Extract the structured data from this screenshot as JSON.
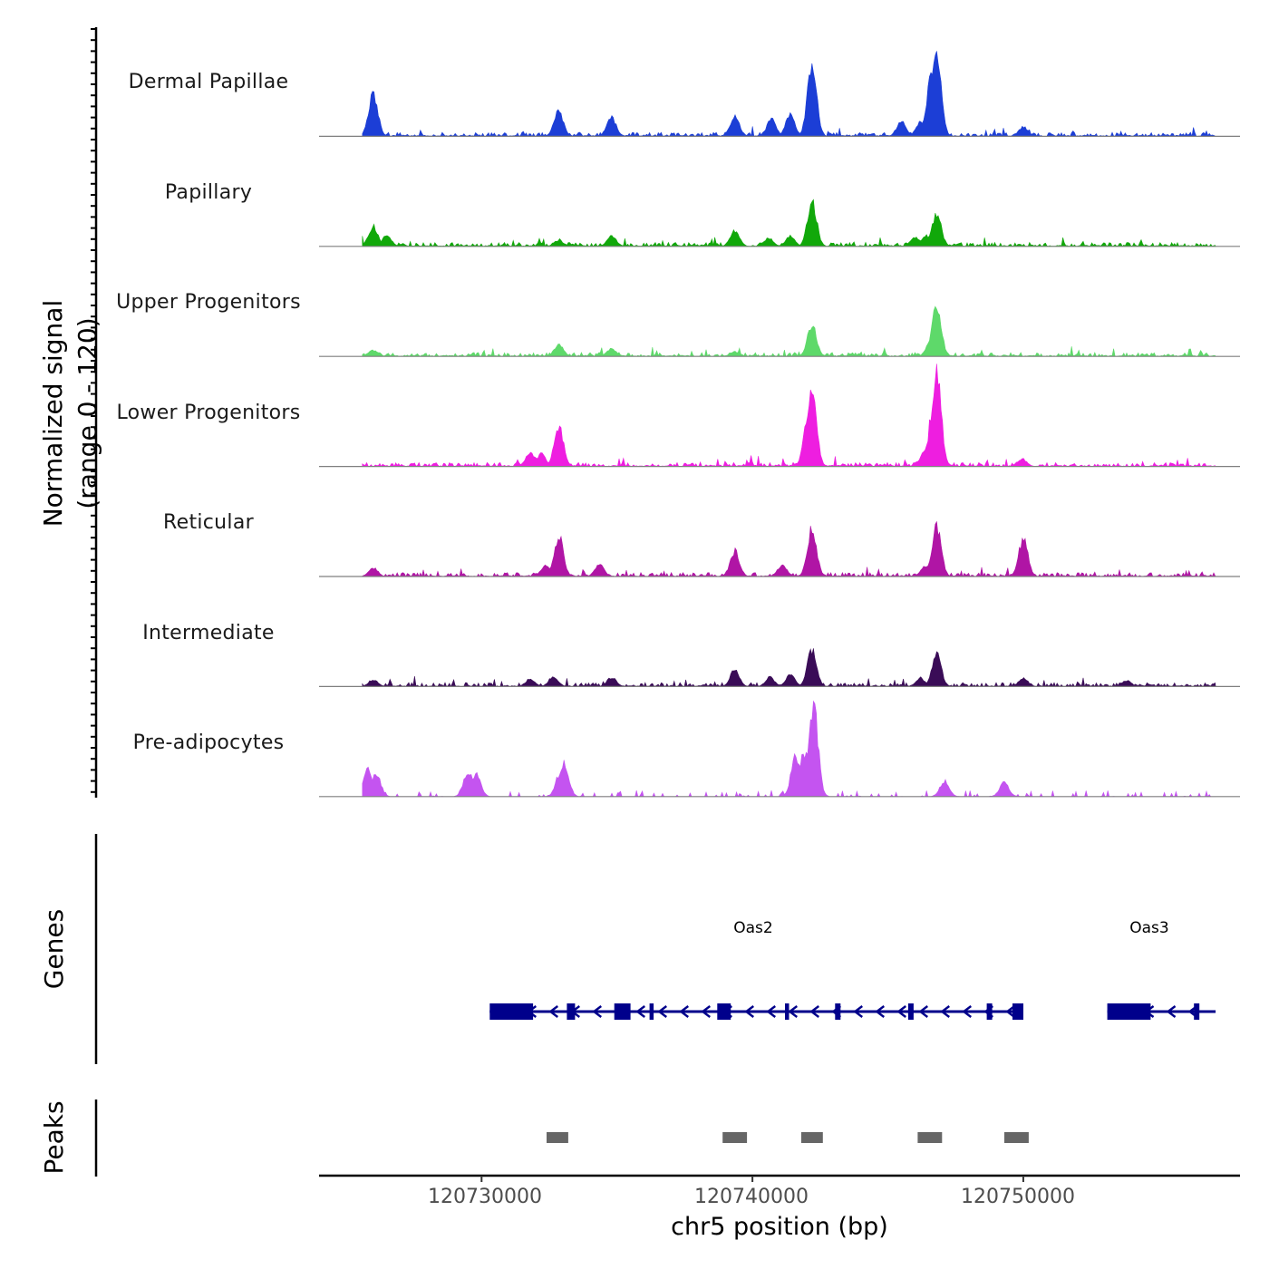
{
  "chart_data": {
    "type": "area",
    "title": "",
    "ylabel_line1": "Normalized signal",
    "ylabel_line2": "(range 0 - 120)",
    "genes_label": "Genes",
    "peaks_label": "Peaks",
    "xlabel": "chr5 position (bp)",
    "xlim": [
      120724000,
      120758000
    ],
    "ylim": [
      0,
      120
    ],
    "x_ticks": [
      {
        "value": 120730000,
        "label": "120730000"
      },
      {
        "value": 120740000,
        "label": "120740000"
      },
      {
        "value": 120750000,
        "label": "120750000"
      }
    ],
    "data_x_start": 120725600,
    "data_x_end": 120757100,
    "peak_positions": [
      120726000,
      120732850,
      120739350,
      120742200,
      120746600,
      120749950
    ],
    "tracks": [
      {
        "name": "Dermal Papillae",
        "color": "#1c3ed6",
        "peaks": [
          [
            120726000,
            55
          ],
          [
            120732850,
            33
          ],
          [
            120734800,
            24
          ],
          [
            120739350,
            26
          ],
          [
            120740700,
            22
          ],
          [
            120741400,
            28
          ],
          [
            120742200,
            92
          ],
          [
            120745500,
            20
          ],
          [
            120746200,
            18
          ],
          [
            120746600,
            75
          ],
          [
            120746800,
            110
          ],
          [
            120750000,
            12
          ]
        ]
      },
      {
        "name": "Papillary",
        "color": "#11a80a",
        "peaks": [
          [
            120726000,
            26
          ],
          [
            120726500,
            14
          ],
          [
            120732850,
            8
          ],
          [
            120734800,
            14
          ],
          [
            120739350,
            20
          ],
          [
            120740600,
            11
          ],
          [
            120741400,
            14
          ],
          [
            120742200,
            58
          ],
          [
            120746000,
            12
          ],
          [
            120746400,
            14
          ],
          [
            120746800,
            42
          ]
        ]
      },
      {
        "name": "Upper Progenitors",
        "color": "#5ed96a",
        "peaks": [
          [
            120726000,
            8
          ],
          [
            120732850,
            15
          ],
          [
            120734800,
            10
          ],
          [
            120739350,
            6
          ],
          [
            120742200,
            40
          ],
          [
            120746600,
            20
          ],
          [
            120746800,
            65
          ]
        ]
      },
      {
        "name": "Lower Progenitors",
        "color": "#ee1ee0",
        "peaks": [
          [
            120731800,
            18
          ],
          [
            120732200,
            16
          ],
          [
            120732850,
            52
          ],
          [
            120742200,
            95
          ],
          [
            120742050,
            60
          ],
          [
            120746400,
            25
          ],
          [
            120746800,
            118
          ],
          [
            120746700,
            85
          ],
          [
            120749950,
            10
          ]
        ]
      },
      {
        "name": "Reticular",
        "color": "#b015a5",
        "peaks": [
          [
            120726000,
            11
          ],
          [
            120732350,
            14
          ],
          [
            120732850,
            52
          ],
          [
            120734350,
            15
          ],
          [
            120739350,
            33
          ],
          [
            120741100,
            14
          ],
          [
            120742200,
            61
          ],
          [
            120746400,
            14
          ],
          [
            120746800,
            64
          ],
          [
            120750000,
            48
          ]
        ]
      },
      {
        "name": "Intermediate",
        "color": "#3a0c57",
        "peaks": [
          [
            120726000,
            9
          ],
          [
            120731800,
            10
          ],
          [
            120732650,
            13
          ],
          [
            120734800,
            12
          ],
          [
            120739350,
            22
          ],
          [
            120740650,
            12
          ],
          [
            120741400,
            16
          ],
          [
            120742200,
            47
          ],
          [
            120746200,
            10
          ],
          [
            120746800,
            41
          ],
          [
            120750000,
            11
          ],
          [
            120753800,
            8
          ]
        ]
      },
      {
        "name": "Pre-adipocytes",
        "color": "#c454f0",
        "peaks": [
          [
            120725800,
            35
          ],
          [
            120726100,
            30
          ],
          [
            120729500,
            32
          ],
          [
            120729800,
            28
          ],
          [
            120733050,
            42
          ],
          [
            120732900,
            30
          ],
          [
            120741600,
            52
          ],
          [
            120741900,
            58
          ],
          [
            120742250,
            118
          ],
          [
            120742100,
            60
          ],
          [
            120747100,
            20
          ],
          [
            120749300,
            18
          ]
        ]
      }
    ],
    "genes": [
      {
        "name": "Oas2",
        "start": 120730300,
        "end": 120750000,
        "strand": "-",
        "exons": [
          [
            120730300,
            120731900
          ],
          [
            120733150,
            120733450
          ],
          [
            120734900,
            120735500
          ],
          [
            120736200,
            120736350
          ],
          [
            120738700,
            120739200
          ],
          [
            120741200,
            120741350
          ],
          [
            120743050,
            120743250
          ],
          [
            120745750,
            120745950
          ],
          [
            120748650,
            120748850
          ],
          [
            120749600,
            120750000
          ]
        ]
      },
      {
        "name": "Oas3",
        "start": 120753100,
        "end": 120757100,
        "strand": "-",
        "exons": [
          [
            120753100,
            120754700
          ],
          [
            120756300,
            120756500
          ]
        ]
      }
    ],
    "peak_regions": [
      [
        120732400,
        120733200
      ],
      [
        120738900,
        120739800
      ],
      [
        120741800,
        120742600
      ],
      [
        120746100,
        120747000
      ],
      [
        120749300,
        120750200
      ]
    ]
  }
}
